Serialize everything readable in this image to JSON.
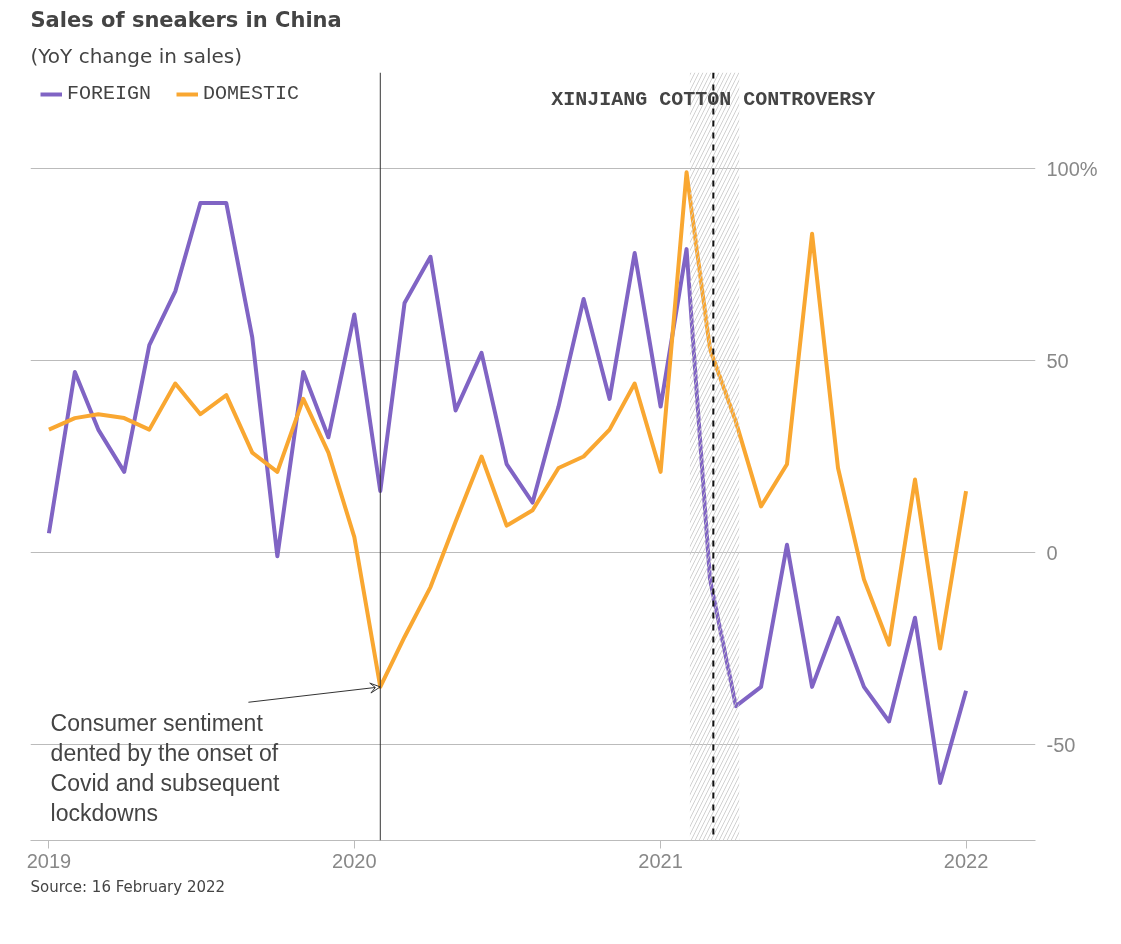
{
  "chart_data": {
    "type": "line",
    "title": "Sales of sneakers in China",
    "subtitle": "(YoY change in sales)",
    "x": [
      "2019-01",
      "2019-02",
      "2019-03",
      "2019-04",
      "2019-05",
      "2019-06",
      "2019-07",
      "2019-08",
      "2019-09",
      "2019-10",
      "2019-11",
      "2019-12",
      "2020-01",
      "2020-02",
      "2020-03",
      "2020-04",
      "2020-05",
      "2020-06",
      "2020-07",
      "2020-08",
      "2020-09",
      "2020-10",
      "2020-11",
      "2020-12",
      "2021-01",
      "2021-02",
      "2021-03",
      "2021-04",
      "2021-05",
      "2021-06",
      "2021-07",
      "2021-08",
      "2021-09",
      "2021-10",
      "2021-11",
      "2021-12",
      "2022-01"
    ],
    "series": [
      {
        "name": "FOREIGN",
        "color": "#8064c4",
        "values": [
          5,
          47,
          32,
          21,
          54,
          68,
          91,
          91,
          56,
          -1,
          47,
          30,
          62,
          16,
          65,
          77,
          37,
          52,
          23,
          13,
          38,
          66,
          40,
          78,
          38,
          79,
          -7,
          -40,
          -35,
          2,
          -35,
          -17,
          -35,
          -44,
          -17,
          -60,
          -36
        ]
      },
      {
        "name": "DOMESTIC",
        "color": "#f9a731",
        "values": [
          32,
          35,
          36,
          35,
          32,
          44,
          36,
          41,
          26,
          21,
          40,
          26,
          4,
          -35,
          -22,
          -9,
          8,
          25,
          7,
          11,
          22,
          25,
          32,
          44,
          21,
          99,
          53,
          34,
          12,
          23,
          83,
          22,
          -7,
          -24,
          19,
          -25,
          16
        ]
      }
    ],
    "xlim": [
      "2018-12-10",
      "2022-03-25"
    ],
    "xticks": [
      {
        "value": "2019-01",
        "label": "2019"
      },
      {
        "value": "2020-01",
        "label": "2020"
      },
      {
        "value": "2021-01",
        "label": "2021"
      },
      {
        "value": "2022-01",
        "label": "2022"
      }
    ],
    "ylim": [
      -75,
      125
    ],
    "yticks": [
      {
        "value": 100,
        "label": "100%"
      },
      50,
      0,
      -50
    ],
    "grid": "y",
    "legend": "top left",
    "line_style": "solid",
    "marker": "none",
    "ref_lines": [
      {
        "axis": "x",
        "value": "2020-02",
        "color": "#333333",
        "line_style": "solid"
      },
      {
        "axis": "x",
        "value": "2021-03-05",
        "label": "XINJIANG COTTON CONTROVERSY",
        "color": "#111111",
        "line_style": "dashed"
      }
    ],
    "bands": [
      {
        "axis": "x",
        "from": "2021-02-05",
        "to": "2021-04-05",
        "color": "#cccccc"
      }
    ],
    "annotations": [
      {
        "text": "Consumer sentiment\ndented by the onset of\nCovid and subsequent\nlockdowns",
        "x": "2020-02",
        "y": -35
      },
      "Source: 16 February 2022"
    ]
  }
}
